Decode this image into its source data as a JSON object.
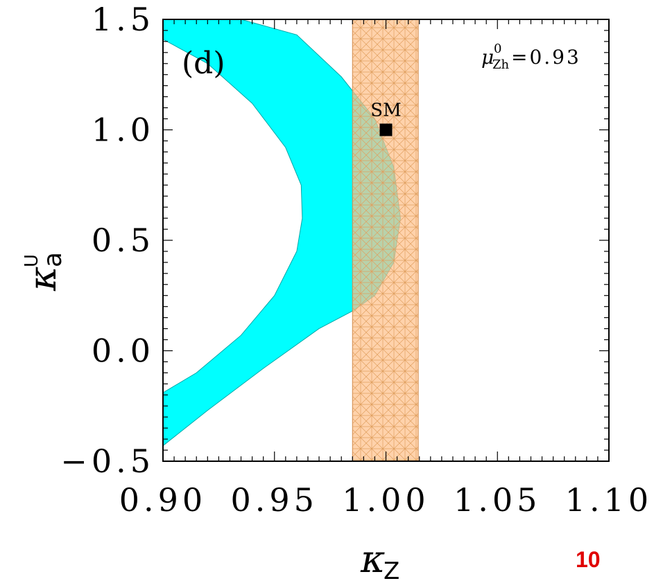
{
  "chart_data": {
    "type": "area",
    "panel_label": "(d)",
    "annotation": {
      "symbol": "μ",
      "superscript": "0",
      "subscript": "Zh",
      "text": "=0.93"
    },
    "xlabel": {
      "symbol": "κ",
      "subscript": "Z"
    },
    "ylabel": {
      "symbol": "κ",
      "subscript": "a",
      "superscript": "U"
    },
    "xlim": [
      0.9,
      1.1
    ],
    "ylim": [
      -0.5,
      1.5
    ],
    "x_ticks": [
      "0.90",
      "0.95",
      "1.00",
      "1.05",
      "1.10"
    ],
    "y_ticks": [
      "−0.5",
      "0.0",
      "0.5",
      "1.0",
      "1.5"
    ],
    "grid": false,
    "series": [
      {
        "region": "cyan band",
        "color": "#00ffff",
        "outer_boundary": [
          {
            "x": 0.9,
            "y": 1.5
          },
          {
            "x": 0.935,
            "y": 1.5
          },
          {
            "x": 0.96,
            "y": 1.43
          },
          {
            "x": 0.98,
            "y": 1.24
          },
          {
            "x": 0.995,
            "y": 1.05
          },
          {
            "x": 1.0035,
            "y": 0.83
          },
          {
            "x": 1.0065,
            "y": 0.6
          },
          {
            "x": 1.0035,
            "y": 0.4
          },
          {
            "x": 0.995,
            "y": 0.25
          },
          {
            "x": 0.985,
            "y": 0.18
          },
          {
            "x": 0.97,
            "y": 0.1
          },
          {
            "x": 0.945,
            "y": -0.08
          },
          {
            "x": 0.92,
            "y": -0.27
          },
          {
            "x": 0.9,
            "y": -0.43
          }
        ],
        "inner_boundary": [
          {
            "x": 0.9,
            "y": 1.41
          },
          {
            "x": 0.92,
            "y": 1.3
          },
          {
            "x": 0.94,
            "y": 1.12
          },
          {
            "x": 0.955,
            "y": 0.92
          },
          {
            "x": 0.962,
            "y": 0.75
          },
          {
            "x": 0.9625,
            "y": 0.6
          },
          {
            "x": 0.96,
            "y": 0.45
          },
          {
            "x": 0.95,
            "y": 0.25
          },
          {
            "x": 0.935,
            "y": 0.07
          },
          {
            "x": 0.915,
            "y": -0.1
          },
          {
            "x": 0.9,
            "y": -0.19
          }
        ]
      },
      {
        "region": "orange band",
        "color": "#ffc08a",
        "x_range": [
          0.985,
          1.0145
        ]
      }
    ],
    "points": [
      {
        "label": "SM",
        "x": 1.0,
        "y": 1.0
      }
    ]
  },
  "page_number": "10"
}
